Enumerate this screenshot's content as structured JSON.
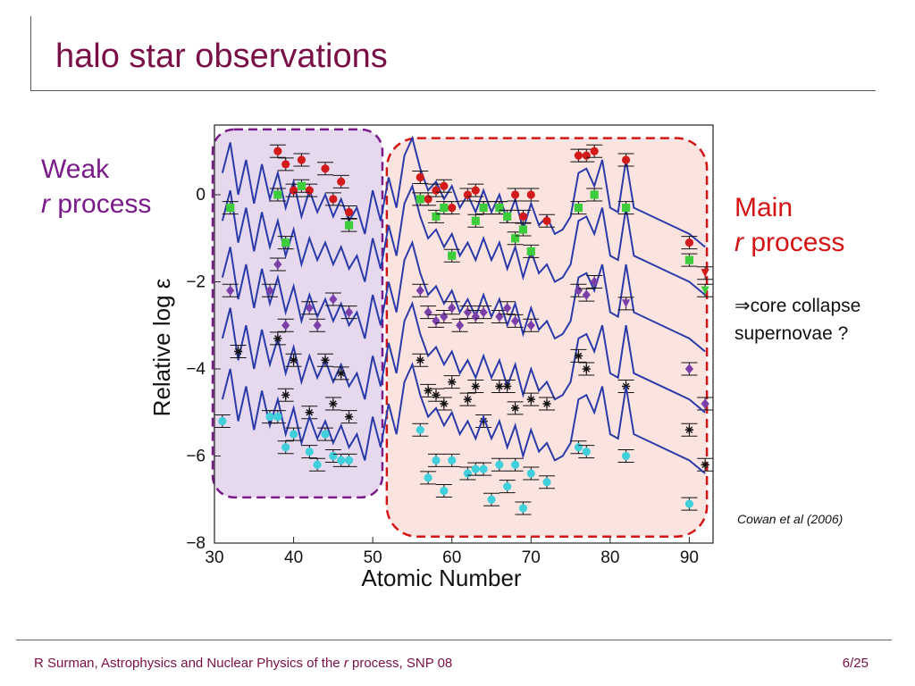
{
  "slide": {
    "title": "halo star observations",
    "weak_label_line1": "Weak",
    "weak_label_r": "r",
    "weak_label_process": " process",
    "main_label_line1": "Main",
    "main_label_r": "r",
    "main_label_process": " process",
    "note_arrow": "⇒",
    "note_line1": "core collapse",
    "note_line2": "supernovae ?",
    "citation": "Cowan et al (2006)",
    "footer_left_a": "R Surman, Astrophysics and Nuclear Physics of the ",
    "footer_left_r": "r",
    "footer_left_b": " process, SNP 08",
    "footer_page": "6/25"
  },
  "colors": {
    "title": "#7a0f47",
    "weak": "#7b1a8a",
    "main": "#d41414",
    "curve": "#2a3aa8",
    "weak_fill": "#e6d9ee",
    "main_fill": "#fbe4e0"
  },
  "chart_data": {
    "type": "scatter",
    "xlabel": "Atomic Number",
    "ylabel": "Relative log ε",
    "xlim": [
      30,
      93
    ],
    "ylim": [
      -8,
      1.6
    ],
    "x_ticks": [
      30,
      40,
      50,
      60,
      70,
      80,
      90
    ],
    "y_ticks": [
      0,
      -2,
      -4,
      -6,
      -8
    ],
    "grid": false,
    "regions": [
      {
        "name": "weak",
        "x": [
          30,
          51
        ]
      },
      {
        "name": "main",
        "x": [
          52,
          92
        ]
      }
    ],
    "curve_pattern": [
      [
        31,
        0.5
      ],
      [
        32,
        1.2
      ],
      [
        33,
        0.0
      ],
      [
        34,
        0.8
      ],
      [
        35,
        -0.2
      ],
      [
        36,
        0.7
      ],
      [
        37,
        -0.1
      ],
      [
        38,
        0.5
      ],
      [
        39,
        -0.3
      ],
      [
        40,
        0.3
      ],
      [
        41,
        -0.5
      ],
      [
        42,
        0.1
      ],
      [
        43,
        -0.4
      ],
      [
        44,
        0.0
      ],
      [
        45,
        -0.5
      ],
      [
        46,
        -0.1
      ],
      [
        47,
        -0.6
      ],
      [
        48,
        -0.3
      ],
      [
        49,
        -0.9
      ],
      [
        50,
        0.1
      ],
      [
        51,
        -0.6
      ],
      [
        52,
        0.4
      ],
      [
        53,
        -0.3
      ],
      [
        54,
        0.9
      ],
      [
        55,
        1.3
      ],
      [
        56,
        0.6
      ],
      [
        57,
        0.1
      ],
      [
        58,
        0.3
      ],
      [
        59,
        -0.1
      ],
      [
        60,
        0.2
      ],
      [
        61,
        -0.3
      ],
      [
        62,
        0.0
      ],
      [
        63,
        -0.4
      ],
      [
        64,
        0.1
      ],
      [
        65,
        -0.4
      ],
      [
        66,
        0.0
      ],
      [
        67,
        -0.6
      ],
      [
        68,
        -0.1
      ],
      [
        69,
        -0.8
      ],
      [
        70,
        -0.2
      ],
      [
        71,
        -0.7
      ],
      [
        72,
        -0.5
      ],
      [
        73,
        -0.9
      ],
      [
        74,
        -0.8
      ],
      [
        75,
        -0.5
      ],
      [
        76,
        0.5
      ],
      [
        77,
        0.6
      ],
      [
        78,
        0.2
      ],
      [
        79,
        0.8
      ],
      [
        80,
        -0.3
      ],
      [
        81,
        -0.4
      ],
      [
        82,
        0.8
      ],
      [
        83,
        -0.3
      ],
      [
        90,
        -0.9
      ],
      [
        92,
        -1.2
      ]
    ],
    "series": [
      {
        "offset": 0.0,
        "color": "#d31a1a",
        "shape": "circle",
        "points": [
          [
            38,
            1.0
          ],
          [
            39,
            0.7
          ],
          [
            40,
            0.1
          ],
          [
            41,
            0.8
          ],
          [
            42,
            0.1
          ],
          [
            44,
            0.6
          ],
          [
            45,
            -0.1
          ],
          [
            46,
            0.3
          ],
          [
            47,
            -0.4
          ],
          [
            56,
            0.4
          ],
          [
            57,
            -0.1
          ],
          [
            58,
            0.1
          ],
          [
            59,
            0.2
          ],
          [
            60,
            -0.3
          ],
          [
            62,
            0.0
          ],
          [
            63,
            0.1
          ],
          [
            64,
            -0.3
          ],
          [
            66,
            -0.3
          ],
          [
            68,
            0.0
          ],
          [
            69,
            -0.5
          ],
          [
            70,
            0.0
          ],
          [
            72,
            -0.6
          ],
          [
            76,
            0.9
          ],
          [
            77,
            0.9
          ],
          [
            78,
            1.0
          ],
          [
            82,
            0.8
          ],
          [
            90,
            -1.1
          ]
        ]
      },
      {
        "offset": -1.1,
        "color": "#3ccc3c",
        "shape": "square",
        "points": [
          [
            32,
            0.8
          ],
          [
            38,
            1.1
          ],
          [
            39,
            0.0
          ],
          [
            41,
            1.3
          ],
          [
            47,
            0.4
          ],
          [
            56,
            1.0
          ],
          [
            58,
            0.6
          ],
          [
            59,
            0.8
          ],
          [
            60,
            -0.3
          ],
          [
            63,
            0.5
          ],
          [
            64,
            0.8
          ],
          [
            66,
            0.8
          ],
          [
            67,
            0.6
          ],
          [
            68,
            0.1
          ],
          [
            69,
            0.3
          ],
          [
            70,
            -0.2
          ],
          [
            76,
            0.8
          ],
          [
            78,
            1.1
          ],
          [
            82,
            0.8
          ],
          [
            90,
            -0.4
          ],
          [
            92,
            -0.7,
            "#d31a1a",
            "tri-down"
          ],
          [
            92,
            -1.1,
            "#3ccc3c",
            "tri-down"
          ]
        ]
      },
      {
        "offset": -2.4,
        "color": "#7a3fa8",
        "shape": "diamond",
        "points": [
          [
            32,
            0.2
          ],
          [
            37,
            0.2
          ],
          [
            38,
            0.8
          ],
          [
            39,
            -0.6
          ],
          [
            42,
            -0.2
          ],
          [
            43,
            -0.6
          ],
          [
            45,
            0.0
          ],
          [
            47,
            -0.3
          ],
          [
            56,
            0.2
          ],
          [
            57,
            -0.3
          ],
          [
            58,
            -0.5
          ],
          [
            59,
            -0.4
          ],
          [
            60,
            -0.2
          ],
          [
            61,
            -0.6
          ],
          [
            62,
            -0.3
          ],
          [
            63,
            -0.4
          ],
          [
            64,
            -0.3
          ],
          [
            66,
            -0.4
          ],
          [
            67,
            -0.2
          ],
          [
            68,
            -0.5
          ],
          [
            70,
            -0.6
          ],
          [
            76,
            0.2
          ],
          [
            77,
            0.1
          ],
          [
            78,
            0.4
          ],
          [
            82,
            -0.1,
            "#7a3fa8",
            "tri-down"
          ],
          [
            90,
            -1.6
          ],
          [
            92,
            -2.4
          ]
        ]
      },
      {
        "offset": -3.8,
        "color": "#111111",
        "shape": "star",
        "points": [
          [
            33,
            0.2
          ],
          [
            38,
            0.5
          ],
          [
            39,
            -0.8
          ],
          [
            40,
            0.0
          ],
          [
            42,
            -1.2
          ],
          [
            44,
            0.0
          ],
          [
            45,
            -1.0
          ],
          [
            46,
            -0.3
          ],
          [
            47,
            -1.3
          ],
          [
            56,
            0.0
          ],
          [
            57,
            -0.7
          ],
          [
            58,
            -0.8
          ],
          [
            59,
            -1.0
          ],
          [
            60,
            -0.5
          ],
          [
            62,
            -0.9
          ],
          [
            63,
            -0.6
          ],
          [
            64,
            -1.4
          ],
          [
            66,
            -0.6
          ],
          [
            67,
            -0.6
          ],
          [
            68,
            -1.1
          ],
          [
            70,
            -0.9
          ],
          [
            72,
            -1.0
          ],
          [
            76,
            0.1
          ],
          [
            77,
            -0.2
          ],
          [
            82,
            -0.6
          ],
          [
            90,
            -1.6
          ],
          [
            92,
            -2.4
          ]
        ]
      },
      {
        "offset": -5.2,
        "color": "#3fd0dc",
        "shape": "circle",
        "points": [
          [
            31,
            0.0
          ],
          [
            37,
            0.1
          ],
          [
            38,
            0.1
          ],
          [
            39,
            -0.6
          ],
          [
            40,
            -0.3
          ],
          [
            42,
            -0.7
          ],
          [
            43,
            -1.0
          ],
          [
            44,
            -0.3
          ],
          [
            45,
            -0.8
          ],
          [
            46,
            -0.9
          ],
          [
            47,
            -0.9
          ],
          [
            56,
            -0.2
          ],
          [
            57,
            -1.3
          ],
          [
            58,
            -0.9
          ],
          [
            59,
            -1.6
          ],
          [
            60,
            -0.9
          ],
          [
            62,
            -1.2
          ],
          [
            63,
            -1.1
          ],
          [
            64,
            -1.1
          ],
          [
            65,
            -1.8
          ],
          [
            66,
            -1.0
          ],
          [
            67,
            -1.5
          ],
          [
            68,
            -1.0
          ],
          [
            69,
            -2.0
          ],
          [
            70,
            -1.2
          ],
          [
            72,
            -1.4
          ],
          [
            76,
            -0.6
          ],
          [
            77,
            -0.7
          ],
          [
            82,
            -0.8
          ],
          [
            90,
            -1.9
          ]
        ]
      }
    ]
  }
}
